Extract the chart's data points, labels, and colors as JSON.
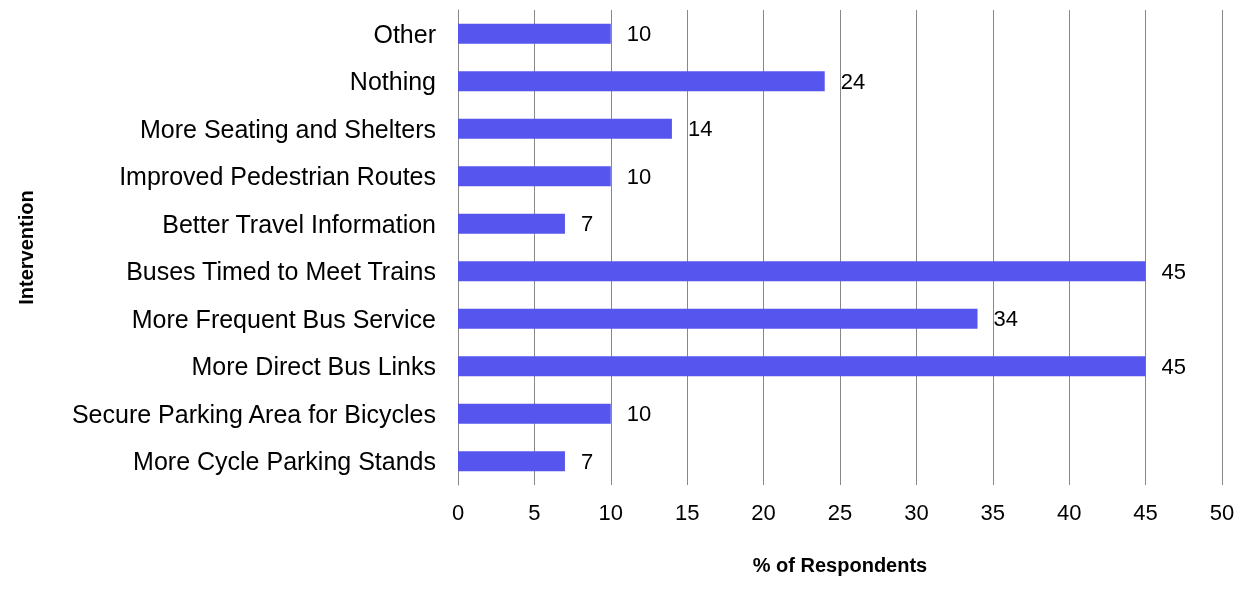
{
  "chart_data": {
    "type": "bar",
    "orientation": "horizontal",
    "xlabel": "% of Respondents",
    "ylabel": "Intervention",
    "categories": [
      "Other",
      "Nothing",
      "More Seating and Shelters",
      "Improved Pedestrian Routes",
      "Better Travel Information",
      "Buses Timed to Meet Trains",
      "More Frequent Bus Service",
      "More Direct Bus Links",
      "Secure Parking Area for Bicycles",
      "More Cycle Parking Stands"
    ],
    "values": [
      10,
      24,
      14,
      10,
      7,
      45,
      34,
      45,
      10,
      7
    ],
    "data_labels": true,
    "color": "#5656ee",
    "xlim": [
      0,
      50
    ],
    "xticks": [
      0,
      5,
      10,
      15,
      20,
      25,
      30,
      35,
      40,
      45,
      50
    ],
    "grid": "x"
  }
}
